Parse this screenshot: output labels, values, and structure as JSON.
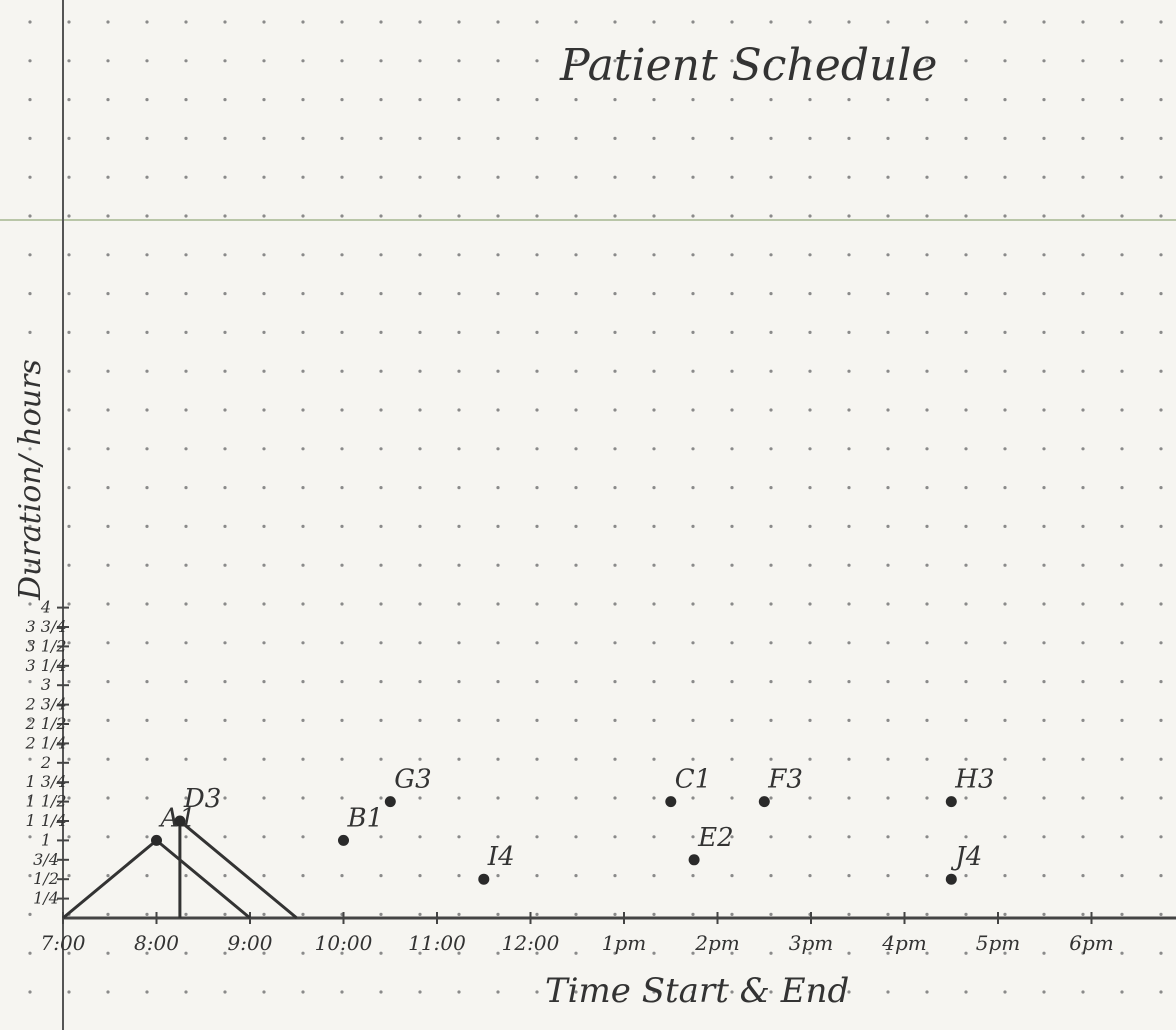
{
  "chart_data": {
    "type": "scatter",
    "title": "Patient Schedule",
    "xlabel": "Time Start & End",
    "ylabel": "Duration/ hours",
    "x_ticks": [
      "7:00",
      "8:00",
      "9:00",
      "10:00",
      "11:00",
      "12:00",
      "1pm",
      "2pm",
      "3pm",
      "4pm",
      "5pm",
      "6pm"
    ],
    "y_ticks": [
      "1/4",
      "1/2",
      "3/4",
      "1",
      "1 1/4",
      "1 1/2",
      "1 3/4",
      "2",
      "2 1/4",
      "2 1/2",
      "2 3/4",
      "3",
      "3 1/4",
      "3 1/2",
      "3 3/4",
      "4"
    ],
    "xlim": [
      7,
      18.8
    ],
    "ylim": [
      0,
      8
    ],
    "grid": "dot grid",
    "points": [
      {
        "label": "A1",
        "x": 8.0,
        "y": 2.0
      },
      {
        "label": "D3",
        "x": 8.25,
        "y": 2.5
      },
      {
        "label": "B1",
        "x": 10.0,
        "y": 2.0
      },
      {
        "label": "G3",
        "x": 10.5,
        "y": 3.0
      },
      {
        "label": "I4",
        "x": 11.5,
        "y": 1.0
      },
      {
        "label": "C1",
        "x": 13.5,
        "y": 3.0
      },
      {
        "label": "E2",
        "x": 13.75,
        "y": 1.5
      },
      {
        "label": "F3",
        "x": 14.5,
        "y": 3.0
      },
      {
        "label": "H3",
        "x": 16.5,
        "y": 3.0
      },
      {
        "label": "J4",
        "x": 16.5,
        "y": 1.0
      }
    ],
    "triangles": [
      {
        "label": "A1",
        "start": 7.0,
        "peak": [
          8.0,
          2.0
        ],
        "end": 9.0
      },
      {
        "label": "D3",
        "start": 8.25,
        "peak": [
          8.25,
          2.5
        ],
        "end": 9.5
      }
    ]
  }
}
